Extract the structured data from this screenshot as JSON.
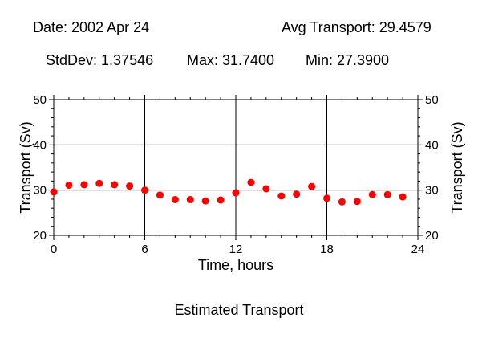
{
  "header": {
    "date": "Date: 2002 Apr 24",
    "avg": "Avg Transport: 29.4579",
    "stddev": "StdDev: 1.37546",
    "max": "Max: 31.7400",
    "min": "Min: 27.3900"
  },
  "caption": "Estimated Transport",
  "chart_data": {
    "type": "scatter",
    "xlabel": "Time, hours",
    "ylabel": "Transport (Sv)",
    "xlim": [
      0,
      24
    ],
    "ylim": [
      20,
      50
    ],
    "xticks": [
      0,
      6,
      12,
      18,
      24
    ],
    "yticks": [
      20,
      30,
      40,
      50
    ],
    "grid": true,
    "marker_color": "#ff0000",
    "x": [
      0,
      1,
      2,
      3,
      4,
      5,
      6,
      7,
      8,
      9,
      10,
      11,
      12,
      13,
      14,
      15,
      16,
      17,
      18,
      19,
      20,
      21,
      22,
      23
    ],
    "y": [
      29.6,
      31.1,
      31.2,
      31.5,
      31.2,
      30.9,
      30.0,
      28.9,
      27.9,
      27.9,
      27.6,
      27.8,
      29.4,
      31.7,
      30.3,
      28.7,
      29.1,
      30.8,
      28.2,
      27.4,
      27.5,
      29.0,
      29.0,
      28.5
    ]
  }
}
